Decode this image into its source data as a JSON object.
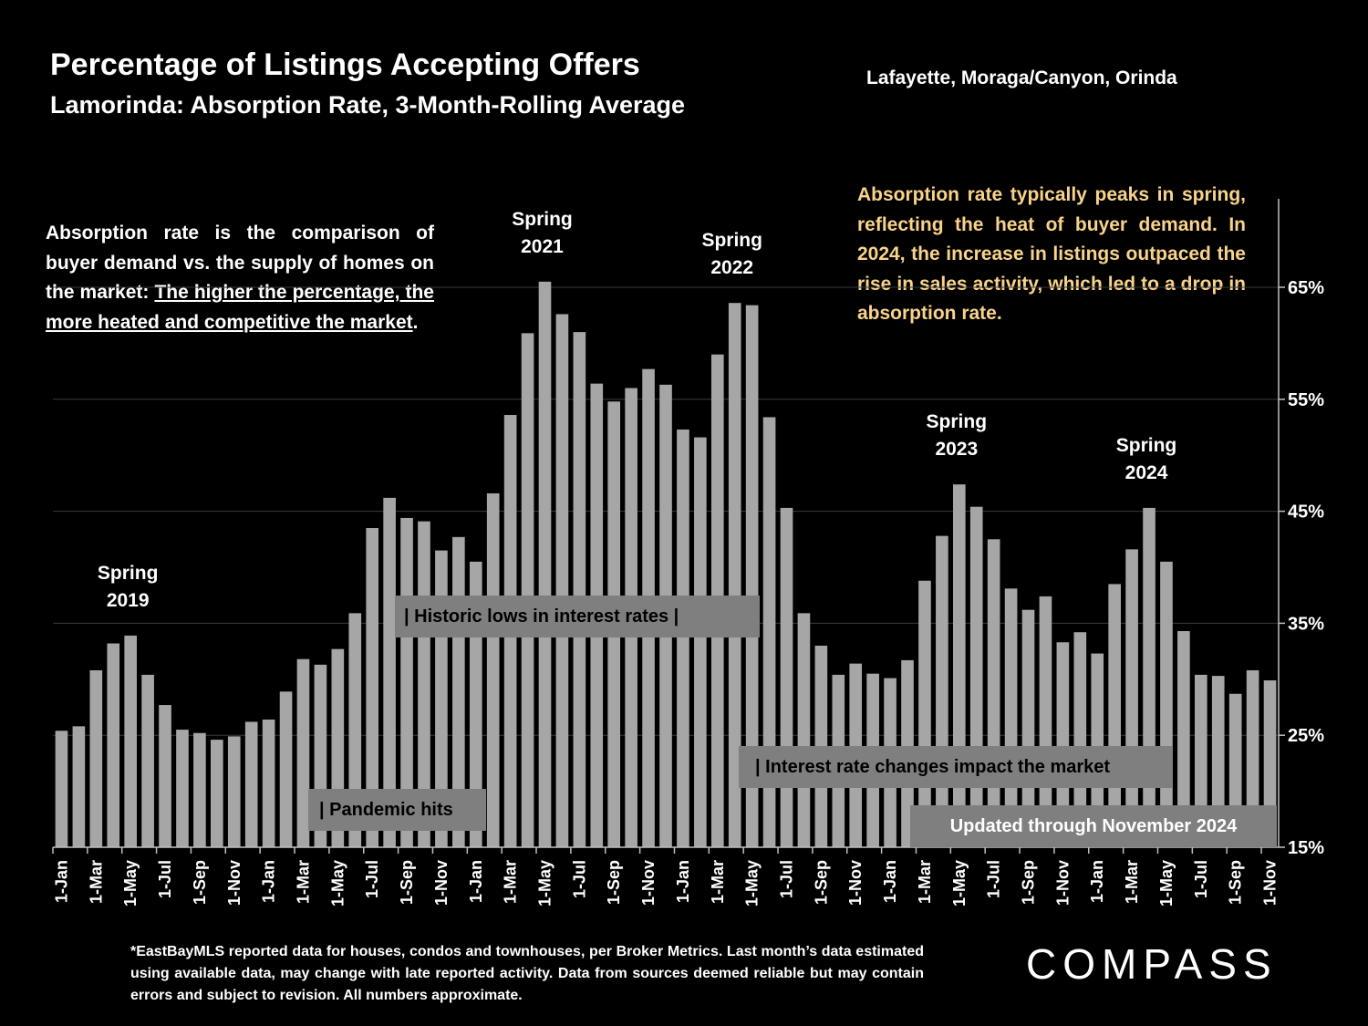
{
  "header": {
    "title": "Percentage of Listings Accepting Offers",
    "subtitle": "Lamorinda:  Absorption Rate, 3-Month-Rolling Average",
    "region": "Lafayette, Moraga/Canyon, Orinda"
  },
  "description": {
    "plain": "Absorption rate is the comparison of buyer demand vs. the supply of homes on the market: ",
    "underlined": "The higher the percentage, the more heated and competitive the market",
    "end": "."
  },
  "note": "Absorption rate typically peaks in spring, reflecting the heat of buyer demand. In 2024, the increase in listings outpaced the rise in sales activity, which led to a drop in absorption rate.",
  "footnote": "*EastBayMLS reported data for houses, condos and townhouses, per Broker Metrics. Last month’s data estimated using available data, may change with late reported activity. Data from sources deemed reliable but may contain errors and subject to revision. All numbers approximate.",
  "logo": "COMPASS",
  "colors": {
    "background": "#000000",
    "bar": "#a6a6a6",
    "note_text": "#f9d38a",
    "gridline": "#3a3a3a",
    "annotation_box": "#7f7f7f"
  },
  "chart_data": {
    "type": "bar",
    "y_axis_position": "right",
    "ylim": [
      15,
      73
    ],
    "yticks": [
      "15%",
      "25%",
      "35%",
      "45%",
      "55%",
      "65%"
    ],
    "ytick_values": [
      15,
      25,
      35,
      45,
      55,
      65
    ],
    "xtick_labels": [
      "1-Jan",
      "1-Mar",
      "1-May",
      "1-Jul",
      "1-Sep",
      "1-Nov",
      "1-Jan",
      "1-Mar",
      "1-May",
      "1-Jul",
      "1-Sep",
      "1-Nov",
      "1-Jan",
      "1-Mar",
      "1-May",
      "1-Jul",
      "1-Sep",
      "1-Nov",
      "1-Jan",
      "1-Mar",
      "1-May",
      "1-Jul",
      "1-Sep",
      "1-Nov",
      "1-Jan",
      "1-Mar",
      "1-May",
      "1-Jul",
      "1-Sep",
      "1-Nov",
      "1-Jan",
      "1-Mar",
      "1-May",
      "1-Jul",
      "1-Sep",
      "1-Nov"
    ],
    "values": [
      25.4,
      25.8,
      30.8,
      33.2,
      33.9,
      30.4,
      27.7,
      25.5,
      25.2,
      24.6,
      24.9,
      26.2,
      26.4,
      28.9,
      31.8,
      31.3,
      32.7,
      35.9,
      43.5,
      46.2,
      44.4,
      44.1,
      41.5,
      42.7,
      40.5,
      46.6,
      53.6,
      60.9,
      65.5,
      62.6,
      61.0,
      56.4,
      54.8,
      56.0,
      57.7,
      56.3,
      52.3,
      51.6,
      59.0,
      63.6,
      63.4,
      53.4,
      45.3,
      35.9,
      33.0,
      30.4,
      31.4,
      30.5,
      30.1,
      31.7,
      38.8,
      42.8,
      47.4,
      45.4,
      42.5,
      38.1,
      36.2,
      37.4,
      33.3,
      34.2,
      32.3,
      38.5,
      41.6,
      45.3,
      40.5,
      34.3,
      30.4,
      30.3,
      28.7,
      30.8,
      29.9
    ],
    "annotations": [
      {
        "line1": "Spring",
        "line2": "2019"
      },
      {
        "line1": "Spring",
        "line2": "2021"
      },
      {
        "line1": "Spring",
        "line2": "2022"
      },
      {
        "line1": "Spring",
        "line2": "2023"
      },
      {
        "line1": "Spring",
        "line2": "2024"
      }
    ],
    "event_labels": {
      "rates": "|    Historic lows in interest rates      |",
      "pandemic": "| Pandemic hits",
      "changes": "| Interest rate changes impact the market",
      "updated": "Updated through November 2024"
    }
  }
}
